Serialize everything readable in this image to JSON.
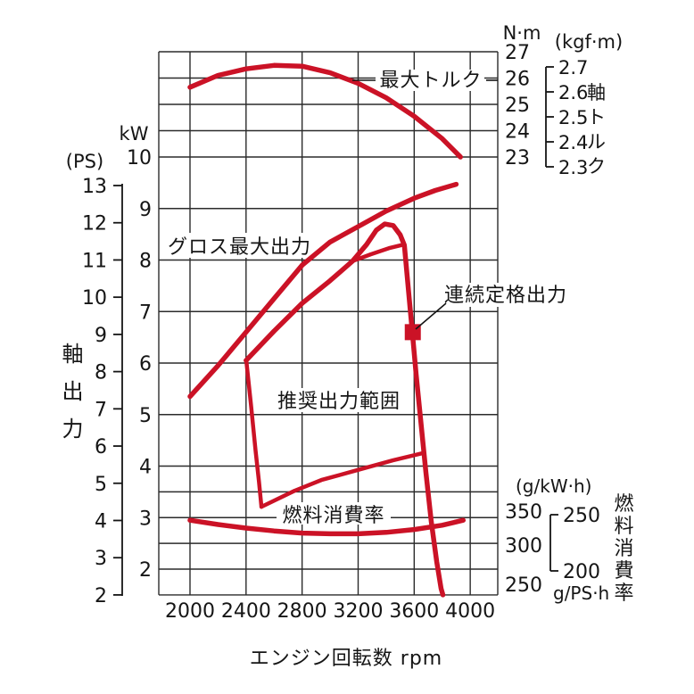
{
  "colors": {
    "curve": "#cb1226",
    "grid": "#2b2b2b",
    "text": "#151515",
    "background": "#ffffff"
  },
  "axes": {
    "x": {
      "title": "エンジン回転数 rpm",
      "ticks": [
        "2000",
        "2400",
        "2800",
        "3200",
        "3600",
        "4000"
      ]
    },
    "power_kw": {
      "unit": "kW",
      "ticks": [
        "10",
        "9",
        "8",
        "7",
        "6",
        "5",
        "4",
        "3",
        "2"
      ]
    },
    "power_ps": {
      "unit": "(PS)",
      "ticks": [
        "13",
        "12",
        "11",
        "10",
        "9",
        "8",
        "7",
        "6",
        "5",
        "4",
        "3",
        "2"
      ],
      "axis_title": "軸出力"
    },
    "torque_nm": {
      "unit": "N·m",
      "ticks": [
        "27",
        "26",
        "25",
        "24",
        "23"
      ]
    },
    "torque_kgfm": {
      "unit": "(kgf·m)",
      "ticks": [
        "2.7",
        "2.6",
        "2.5",
        "2.4",
        "2.3"
      ],
      "axis_title": "軸トルク"
    },
    "fuel_gkwh": {
      "unit": "(g/kW·h)",
      "ticks": [
        "350",
        "300",
        "250"
      ]
    },
    "fuel_gpsh": {
      "unit": "g/PS·h",
      "ticks": [
        "250",
        "200"
      ],
      "axis_title": "燃料消費率"
    }
  },
  "annotations": {
    "max_torque": "最大トルク",
    "gross_max_output": "グロス最大出力",
    "continuous_rated_output": "連続定格出力",
    "recommended_range": "推奨出力範囲",
    "fuel_consumption": "燃料消費率"
  },
  "chart_data": {
    "type": "line",
    "xlabel": "エンジン回転数 rpm",
    "x_range_labeled": [
      2000,
      4000
    ],
    "grid": true,
    "axes_info": {
      "power": {
        "unit": "kW",
        "kw_ticks": [
          10,
          9,
          8,
          7,
          6,
          5,
          4,
          3,
          2
        ],
        "ps_ticks": [
          13,
          12,
          11,
          10,
          9,
          8,
          7,
          6,
          5,
          4,
          3,
          2
        ],
        "title": "軸出力 (shaft output)"
      },
      "torque": {
        "unit": "N·m",
        "nm_ticks": [
          27,
          26,
          25,
          24,
          23
        ],
        "kgfm_ticks": [
          2.7,
          2.6,
          2.5,
          2.4,
          2.3
        ],
        "title": "軸トルク (shaft torque)"
      },
      "fuel": {
        "unit": "g/kW·h",
        "gkwh_ticks": [
          350,
          300,
          250
        ],
        "gpsh_ticks": [
          250,
          200
        ],
        "title": "燃料消費率 (fuel consumption)"
      }
    },
    "series": [
      {
        "id": "max-torque",
        "name": "最大トルク",
        "yscale": "nm",
        "width": 5.5,
        "points": [
          [
            2000,
            25.65
          ],
          [
            2200,
            26.1
          ],
          [
            2400,
            26.35
          ],
          [
            2600,
            26.48
          ],
          [
            2800,
            26.45
          ],
          [
            3000,
            26.2
          ],
          [
            3200,
            25.8
          ],
          [
            3400,
            25.25
          ],
          [
            3600,
            24.55
          ],
          [
            3800,
            23.7
          ],
          [
            3930,
            23.0
          ]
        ]
      },
      {
        "id": "gross-max-output",
        "name": "グロス最大出力",
        "yscale": "kw",
        "width": 5.5,
        "points": [
          [
            2000,
            5.35
          ],
          [
            2200,
            5.95
          ],
          [
            2400,
            6.6
          ],
          [
            2600,
            7.25
          ],
          [
            2800,
            7.9
          ],
          [
            3000,
            8.35
          ],
          [
            3200,
            8.65
          ],
          [
            3400,
            8.95
          ],
          [
            3600,
            9.2
          ],
          [
            3750,
            9.35
          ],
          [
            3900,
            9.47
          ]
        ]
      },
      {
        "id": "continuous-rated-output",
        "name": "連続定格出力",
        "yscale": "kw",
        "width": 5.5,
        "points": [
          [
            2400,
            6.05
          ],
          [
            2600,
            6.62
          ],
          [
            2800,
            7.16
          ],
          [
            3000,
            7.6
          ],
          [
            3160,
            7.98
          ],
          [
            3260,
            8.3
          ],
          [
            3330,
            8.58
          ],
          [
            3390,
            8.7
          ],
          [
            3450,
            8.67
          ],
          [
            3500,
            8.49
          ],
          [
            3530,
            8.29
          ],
          [
            3550,
            7.68
          ],
          [
            3576,
            6.9
          ],
          [
            3588,
            6.57
          ],
          [
            3614,
            5.78
          ],
          [
            3646,
            4.91
          ],
          [
            3684,
            3.87
          ],
          [
            3722,
            2.92
          ],
          [
            3761,
            2.14
          ],
          [
            3792,
            1.62
          ],
          [
            3805,
            1.5
          ]
        ]
      },
      {
        "id": "recommended-range-top",
        "name": "推奨出力範囲 上側境界",
        "yscale": "kw",
        "width": 4.5,
        "points": [
          [
            3160,
            7.98
          ],
          [
            3290,
            8.11
          ],
          [
            3420,
            8.23
          ],
          [
            3525,
            8.3
          ]
        ]
      },
      {
        "id": "recommended-range-left",
        "name": "推奨出力範囲 左側境界",
        "yscale": "kw",
        "width": 4.5,
        "points": [
          [
            2402,
            6.05
          ],
          [
            2435,
            5.2
          ],
          [
            2468,
            4.3
          ],
          [
            2492,
            3.7
          ],
          [
            2510,
            3.21
          ]
        ]
      },
      {
        "id": "recommended-range-bottom",
        "name": "推奨出力範囲 下側境界",
        "yscale": "kw",
        "width": 4.5,
        "points": [
          [
            2510,
            3.21
          ],
          [
            2746,
            3.52
          ],
          [
            2938,
            3.73
          ],
          [
            3193,
            3.92
          ],
          [
            3448,
            4.11
          ],
          [
            3659,
            4.25
          ]
        ]
      },
      {
        "id": "fuel-consumption",
        "name": "燃料消費率",
        "yscale": "fuel",
        "width": 5.5,
        "points": [
          [
            2000,
            336
          ],
          [
            2200,
            330
          ],
          [
            2400,
            325
          ],
          [
            2600,
            321
          ],
          [
            2800,
            318
          ],
          [
            3000,
            317
          ],
          [
            3200,
            317
          ],
          [
            3400,
            319
          ],
          [
            3600,
            323
          ],
          [
            3800,
            329
          ],
          [
            3950,
            336
          ]
        ]
      }
    ],
    "rated_point_marker": {
      "rpm": 3590,
      "kw": 6.6,
      "label": "連続定格出力"
    }
  }
}
